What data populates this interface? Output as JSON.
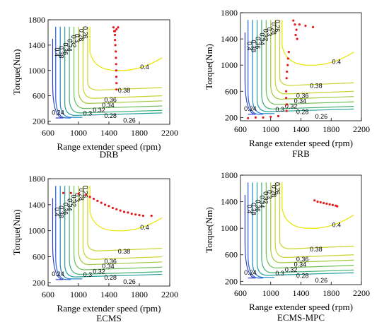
{
  "chart_data": [
    {
      "type": "contour",
      "caption": "DRB",
      "xlabel": "Range extender speed (rpm)",
      "ylabel": "Torque(Nm)",
      "xlim": [
        600,
        2200
      ],
      "ylim": [
        150,
        1800
      ],
      "xticks": [
        600,
        1000,
        1400,
        1800,
        2200
      ],
      "yticks": [
        200,
        600,
        1000,
        1400,
        1800
      ],
      "grid": false,
      "operating_points": [
        {
          "x": 1460,
          "y": 1680
        },
        {
          "x": 1470,
          "y": 1620
        },
        {
          "x": 1480,
          "y": 1560
        },
        {
          "x": 1480,
          "y": 1480
        },
        {
          "x": 1485,
          "y": 1400
        },
        {
          "x": 1490,
          "y": 1300
        },
        {
          "x": 1492,
          "y": 1200
        },
        {
          "x": 1495,
          "y": 1100
        },
        {
          "x": 1497,
          "y": 1000
        },
        {
          "x": 1498,
          "y": 900
        },
        {
          "x": 1500,
          "y": 800
        },
        {
          "x": 1500,
          "y": 700
        },
        {
          "x": 1520,
          "y": 1680
        },
        {
          "x": 1500,
          "y": 1650
        },
        {
          "x": 1480,
          "y": 1620
        }
      ]
    },
    {
      "type": "contour",
      "caption": "FRB",
      "xlabel": "Range extender speed (rpm)",
      "ylabel": "Torque(Nm)",
      "xlim": [
        600,
        2200
      ],
      "ylim": [
        150,
        1800
      ],
      "xticks": [
        600,
        1000,
        1400,
        1800,
        2200
      ],
      "yticks": [
        200,
        600,
        1000,
        1400,
        1800
      ],
      "grid": false,
      "operating_points": [
        {
          "x": 1300,
          "y": 1680
        },
        {
          "x": 1320,
          "y": 1620
        },
        {
          "x": 1380,
          "y": 1620
        },
        {
          "x": 1460,
          "y": 1600
        },
        {
          "x": 1560,
          "y": 1580
        },
        {
          "x": 1340,
          "y": 1540
        },
        {
          "x": 1330,
          "y": 1460
        },
        {
          "x": 1350,
          "y": 1400
        },
        {
          "x": 1240,
          "y": 1200
        },
        {
          "x": 1230,
          "y": 1100
        },
        {
          "x": 1225,
          "y": 1000
        },
        {
          "x": 1215,
          "y": 900
        },
        {
          "x": 1210,
          "y": 800
        },
        {
          "x": 1205,
          "y": 600
        },
        {
          "x": 1205,
          "y": 500
        },
        {
          "x": 1210,
          "y": 400
        },
        {
          "x": 1210,
          "y": 300
        },
        {
          "x": 1100,
          "y": 220
        },
        {
          "x": 1000,
          "y": 210
        },
        {
          "x": 900,
          "y": 200
        },
        {
          "x": 800,
          "y": 200
        },
        {
          "x": 700,
          "y": 190
        }
      ]
    },
    {
      "type": "contour",
      "caption": "ECMS",
      "xlabel": "Range extender speed (rpm)",
      "ylabel": "Torque(Nm)",
      "xlim": [
        600,
        2200
      ],
      "ylim": [
        150,
        1800
      ],
      "xticks": [
        600,
        1000,
        1400,
        1800,
        2200
      ],
      "yticks": [
        200,
        600,
        1000,
        1400,
        1800
      ],
      "grid": false,
      "operating_points": [
        {
          "x": 800,
          "y": 1580
        },
        {
          "x": 900,
          "y": 1580
        },
        {
          "x": 1000,
          "y": 1570
        },
        {
          "x": 1100,
          "y": 1550
        },
        {
          "x": 1150,
          "y": 1520
        },
        {
          "x": 1200,
          "y": 1490
        },
        {
          "x": 1250,
          "y": 1460
        },
        {
          "x": 1300,
          "y": 1430
        },
        {
          "x": 1350,
          "y": 1400
        },
        {
          "x": 1400,
          "y": 1380
        },
        {
          "x": 1450,
          "y": 1350
        },
        {
          "x": 1500,
          "y": 1330
        },
        {
          "x": 1550,
          "y": 1310
        },
        {
          "x": 1600,
          "y": 1290
        },
        {
          "x": 1650,
          "y": 1280
        },
        {
          "x": 1700,
          "y": 1260
        },
        {
          "x": 1750,
          "y": 1250
        },
        {
          "x": 1800,
          "y": 1240
        },
        {
          "x": 1850,
          "y": 1230
        },
        {
          "x": 1960,
          "y": 1230
        }
      ]
    },
    {
      "type": "contour",
      "caption": "ECMS-MPC",
      "xlabel": "Range extender speed (rpm)",
      "ylabel": "Torque(Nm)",
      "xlim": [
        600,
        2200
      ],
      "ylim": [
        150,
        1800
      ],
      "xticks": [
        600,
        1000,
        1400,
        1800,
        2200
      ],
      "yticks": [
        200,
        600,
        1000,
        1400,
        1800
      ],
      "grid": false,
      "operating_points": [
        {
          "x": 1580,
          "y": 1420
        },
        {
          "x": 1620,
          "y": 1400
        },
        {
          "x": 1660,
          "y": 1390
        },
        {
          "x": 1700,
          "y": 1380
        },
        {
          "x": 1740,
          "y": 1370
        },
        {
          "x": 1780,
          "y": 1360
        },
        {
          "x": 1820,
          "y": 1350
        },
        {
          "x": 1860,
          "y": 1340
        },
        {
          "x": 1880,
          "y": 1330
        }
      ]
    }
  ],
  "contour_levels": [
    {
      "level": "0.4",
      "color": "#e6e600"
    },
    {
      "level": "0.38",
      "color": "#c8d42a"
    },
    {
      "level": "0.36",
      "color": "#a3c940"
    },
    {
      "level": "0.34",
      "color": "#6fbf58"
    },
    {
      "level": "0.32",
      "color": "#3fb177"
    },
    {
      "level": "0.3",
      "color": "#22a19a"
    },
    {
      "level": "0.28",
      "color": "#2186c4"
    },
    {
      "level": "0.26",
      "color": "#2a60d8"
    },
    {
      "level": "0.24",
      "color": "#2c3fc8"
    }
  ],
  "series_color": "#e31a1c"
}
